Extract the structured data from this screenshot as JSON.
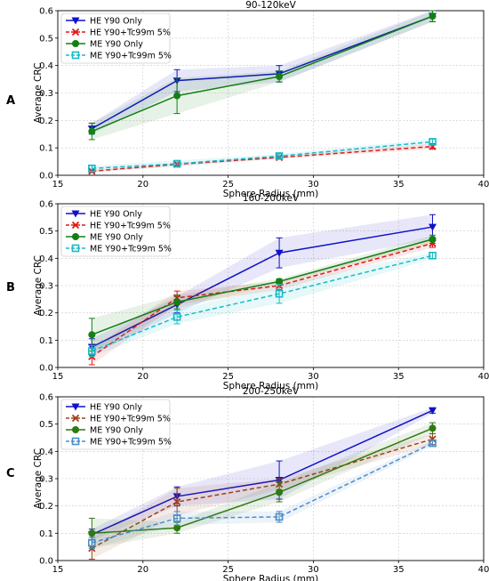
{
  "figure": {
    "panel_letters": [
      "A",
      "B",
      "C"
    ]
  },
  "chart_data": [
    {
      "type": "line",
      "title": "90-120keV",
      "xlabel": "Sphere Radius (mm)",
      "ylabel": "Average CRC",
      "xlim": [
        15,
        40
      ],
      "ylim": [
        0,
        0.6
      ],
      "xticks": [
        15,
        20,
        25,
        30,
        35,
        40
      ],
      "yticks": [
        0.0,
        0.1,
        0.2,
        0.3,
        0.4,
        0.5,
        0.6
      ],
      "grid": true,
      "legend": "top-left",
      "x": [
        17,
        22,
        28,
        37
      ],
      "series": [
        {
          "name": "HE Y90 Only",
          "color": "#1010c8",
          "dash": "solid",
          "marker": "triangle-down",
          "values": [
            0.17,
            0.345,
            0.37,
            0.58
          ],
          "err": [
            0.02,
            0.04,
            0.03,
            0.02
          ]
        },
        {
          "name": "HE Y90+Tc99m 5%",
          "color": "#e01818",
          "dash": "dashed",
          "marker": "x",
          "values": [
            0.015,
            0.04,
            0.065,
            0.105
          ],
          "err": [
            0.005,
            0.005,
            0.005,
            0.01
          ]
        },
        {
          "name": "ME Y90 Only",
          "color": "#128012",
          "dash": "solid",
          "marker": "circle",
          "values": [
            0.16,
            0.29,
            0.36,
            0.58
          ],
          "err": [
            0.03,
            0.065,
            0.02,
            0.02
          ]
        },
        {
          "name": "ME Y90+Tc99m 5%",
          "color": "#17bcc8",
          "dash": "dashed",
          "marker": "square",
          "values": [
            0.025,
            0.042,
            0.07,
            0.122
          ],
          "err": [
            0.01,
            0.012,
            0.008,
            0.01
          ]
        }
      ]
    },
    {
      "type": "line",
      "title": "160-200keV",
      "xlabel": "Sphere Radius (mm)",
      "ylabel": "Average CRC",
      "xlim": [
        15,
        40
      ],
      "ylim": [
        0,
        0.6
      ],
      "xticks": [
        15,
        20,
        25,
        30,
        35,
        40
      ],
      "yticks": [
        0.0,
        0.1,
        0.2,
        0.3,
        0.4,
        0.5,
        0.6
      ],
      "grid": true,
      "legend": "top-left",
      "x": [
        17,
        22,
        28,
        37
      ],
      "series": [
        {
          "name": "HE Y90 Only",
          "color": "#1010c8",
          "dash": "solid",
          "marker": "triangle-down",
          "values": [
            0.075,
            0.23,
            0.42,
            0.515
          ],
          "err": [
            0.03,
            0.03,
            0.055,
            0.045
          ]
        },
        {
          "name": "HE Y90+Tc99m 5%",
          "color": "#e01818",
          "dash": "dashed",
          "marker": "x",
          "values": [
            0.04,
            0.255,
            0.3,
            0.455
          ],
          "err": [
            0.03,
            0.025,
            0.015,
            0.015
          ]
        },
        {
          "name": "ME Y90 Only",
          "color": "#128012",
          "dash": "solid",
          "marker": "circle",
          "values": [
            0.12,
            0.24,
            0.315,
            0.47
          ],
          "err": [
            0.06,
            0.025,
            0.01,
            0.015
          ]
        },
        {
          "name": "ME Y90+Tc99m 5%",
          "color": "#17bcc8",
          "dash": "dashed",
          "marker": "square",
          "values": [
            0.06,
            0.185,
            0.27,
            0.41
          ],
          "err": [
            0.02,
            0.025,
            0.035,
            0.012
          ]
        }
      ]
    },
    {
      "type": "line",
      "title": "200-250keV",
      "xlabel": "Sphere Radius (mm)",
      "ylabel": "Average CRC",
      "xlim": [
        15,
        40
      ],
      "ylim": [
        0,
        0.6
      ],
      "xticks": [
        15,
        20,
        25,
        30,
        35,
        40
      ],
      "yticks": [
        0.0,
        0.1,
        0.2,
        0.3,
        0.4,
        0.5,
        0.6
      ],
      "grid": true,
      "legend": "top-left",
      "x": [
        17,
        22,
        28,
        37
      ],
      "series": [
        {
          "name": "HE Y90 Only",
          "color": "#1010c8",
          "dash": "solid",
          "marker": "triangle-down",
          "values": [
            0.095,
            0.235,
            0.295,
            0.55
          ],
          "err": [
            0.02,
            0.035,
            0.07,
            0.01
          ]
        },
        {
          "name": "HE Y90+Tc99m 5%",
          "color": "#a0401a",
          "dash": "dashed",
          "marker": "x",
          "values": [
            0.045,
            0.215,
            0.28,
            0.445
          ],
          "err": [
            0.04,
            0.05,
            0.02,
            0.02
          ]
        },
        {
          "name": "ME Y90 Only",
          "color": "#2e7a10",
          "dash": "solid",
          "marker": "circle",
          "values": [
            0.1,
            0.12,
            0.25,
            0.485
          ],
          "err": [
            0.055,
            0.02,
            0.035,
            0.02
          ]
        },
        {
          "name": "ME Y90+Tc99m 5%",
          "color": "#4a8ec8",
          "dash": "dashed",
          "marker": "square",
          "values": [
            0.065,
            0.155,
            0.16,
            0.43
          ],
          "err": [
            0.02,
            0.025,
            0.02,
            0.01
          ]
        }
      ]
    }
  ]
}
